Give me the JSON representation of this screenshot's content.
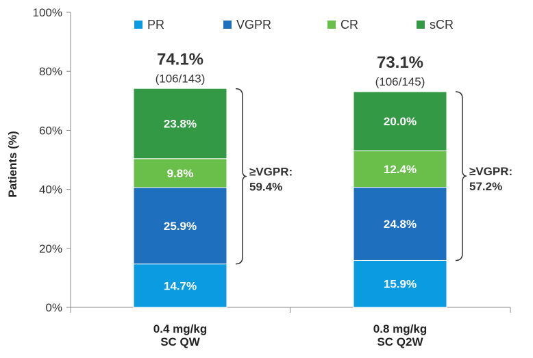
{
  "chart_data": {
    "type": "bar",
    "stacked": true,
    "ylabel": "Patients (%)",
    "ylim": [
      0,
      100
    ],
    "yticks": [
      "0%",
      "20%",
      "40%",
      "60%",
      "80%",
      "100%"
    ],
    "categories": [
      {
        "line1": "0.4 mg/kg",
        "line2": "SC QW"
      },
      {
        "line1": "0.8 mg/kg",
        "line2": "SC Q2W"
      }
    ],
    "series": [
      {
        "name": "PR",
        "color": "#0a9be0",
        "values": [
          14.7,
          15.9
        ],
        "labels": [
          "14.7%",
          "15.9%"
        ]
      },
      {
        "name": "VGPR",
        "color": "#1f6fbf",
        "values": [
          25.9,
          24.8
        ],
        "labels": [
          "25.9%",
          "24.8%"
        ]
      },
      {
        "name": "CR",
        "color": "#6abf4b",
        "values": [
          9.8,
          12.4
        ],
        "labels": [
          "9.8%",
          "12.4%"
        ]
      },
      {
        "name": "sCR",
        "color": "#339944",
        "values": [
          23.8,
          20.0
        ],
        "labels": [
          "23.8%",
          "20.0%"
        ]
      }
    ],
    "totals": [
      {
        "label": "74.1%",
        "fraction": "(106/143)",
        "value": 74.1
      },
      {
        "label": "73.1%",
        "fraction": "(106/145)",
        "value": 73.1
      }
    ],
    "brace_annotations": [
      {
        "title": "≥VGPR:",
        "value": "59.4%"
      },
      {
        "title": "≥VGPR:",
        "value": "57.2%"
      }
    ],
    "legend_position": "top"
  }
}
